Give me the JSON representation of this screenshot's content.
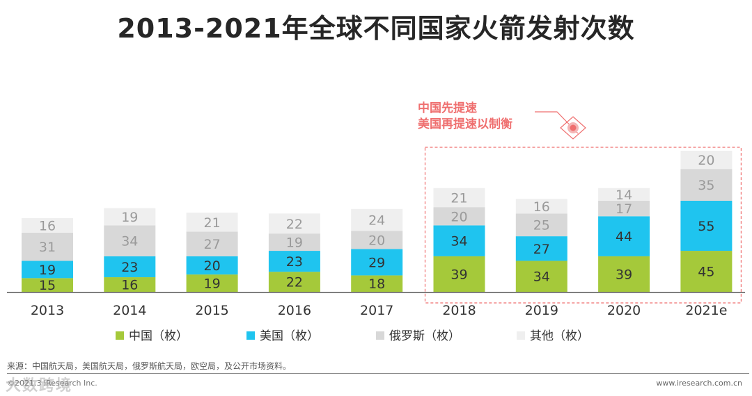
{
  "chart_data": {
    "type": "bar",
    "stacked": true,
    "title": "2013-2021年全球不同国家火箭发射次数",
    "categories": [
      "2013",
      "2014",
      "2015",
      "2016",
      "2017",
      "2018",
      "2019",
      "2020",
      "2021e"
    ],
    "series": [
      {
        "name": "中国（枚）",
        "color": "#a5c93a",
        "values": [
          15,
          16,
          19,
          22,
          18,
          39,
          34,
          39,
          45
        ]
      },
      {
        "name": "美国（枚）",
        "color": "#1fc4ef",
        "values": [
          19,
          23,
          20,
          23,
          29,
          34,
          27,
          44,
          55
        ]
      },
      {
        "name": "俄罗斯（枚）",
        "color": "#d8d8d8",
        "values": [
          31,
          34,
          27,
          19,
          20,
          20,
          25,
          17,
          35
        ]
      },
      {
        "name": "其他（枚）",
        "color": "#efefef",
        "values": [
          16,
          19,
          21,
          22,
          24,
          21,
          16,
          14,
          20
        ]
      }
    ],
    "legend_position": "bottom",
    "annotation": {
      "line1": "中国先提速",
      "line2": "美国再提速以制衡",
      "color": "#ef6f6f"
    }
  },
  "footer": {
    "source": "来源：中国航天局，美国航天局，俄罗斯航天局，欧空局，及公开市场资料。",
    "copyright": "©2021.3 iResearch Inc.",
    "website": "www.iresearch.com.cn",
    "watermark": "大数跨境"
  }
}
